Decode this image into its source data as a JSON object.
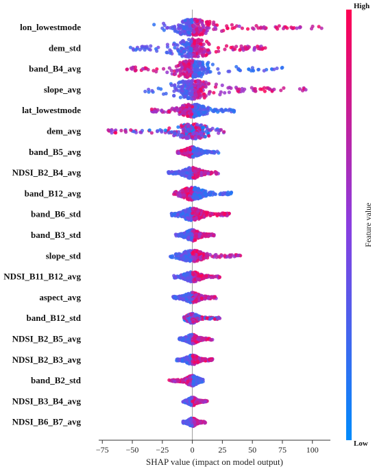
{
  "chart_data": {
    "type": "scatter",
    "subtype": "shap-beeswarm-summary",
    "xlabel": "SHAP value (impact on model output)",
    "xlim": [
      -78,
      115
    ],
    "xticks": [
      -75,
      -50,
      -25,
      0,
      25,
      50,
      75,
      100
    ],
    "grid": false,
    "colorbar": {
      "title": "Feature value",
      "high_label": "High",
      "low_label": "Low",
      "high_color": "#ff0052",
      "low_color": "#008bfb"
    },
    "features": [
      {
        "name": "lon_lowestmode",
        "min": -32,
        "max": 108,
        "spread": 0.85,
        "lowside": "left"
      },
      {
        "name": "dem_std",
        "min": -52,
        "max": 62,
        "spread": 1.0,
        "lowside": "left"
      },
      {
        "name": "band_B4_avg",
        "min": -55,
        "max": 75,
        "spread": 0.9,
        "lowside": "right"
      },
      {
        "name": "slope_avg",
        "min": -40,
        "max": 98,
        "spread": 1.0,
        "lowside": "left"
      },
      {
        "name": "lat_lowestmode",
        "min": -35,
        "max": 37,
        "spread": 0.7,
        "lowside": "right"
      },
      {
        "name": "dem_avg",
        "min": -70,
        "max": 27,
        "spread": 0.8,
        "lowside": "center"
      },
      {
        "name": "band_B5_avg",
        "min": -13,
        "max": 22,
        "spread": 0.55,
        "lowside": "right"
      },
      {
        "name": "NDSI_B2_B4_avg",
        "min": -20,
        "max": 22,
        "spread": 0.6,
        "lowside": "left"
      },
      {
        "name": "band_B12_avg",
        "min": -17,
        "max": 33,
        "spread": 0.7,
        "lowside": "right"
      },
      {
        "name": "band_B6_std",
        "min": -19,
        "max": 31,
        "spread": 0.65,
        "lowside": "left"
      },
      {
        "name": "band_B3_std",
        "min": -14,
        "max": 20,
        "spread": 0.6,
        "lowside": "left"
      },
      {
        "name": "slope_std",
        "min": -19,
        "max": 42,
        "spread": 0.6,
        "lowside": "left"
      },
      {
        "name": "NDSI_B11_B12_avg",
        "min": -16,
        "max": 23,
        "spread": 0.55,
        "lowside": "left"
      },
      {
        "name": "aspect_avg",
        "min": -16,
        "max": 20,
        "spread": 0.55,
        "lowside": "left"
      },
      {
        "name": "band_B12_std",
        "min": -7,
        "max": 24,
        "spread": 0.5,
        "lowside": "center"
      },
      {
        "name": "NDSI_B2_B5_avg",
        "min": -11,
        "max": 17,
        "spread": 0.5,
        "lowside": "left"
      },
      {
        "name": "NDSI_B2_B3_avg",
        "min": -13,
        "max": 17,
        "spread": 0.5,
        "lowside": "left"
      },
      {
        "name": "band_B2_std",
        "min": -20,
        "max": 9,
        "spread": 0.55,
        "lowside": "right"
      },
      {
        "name": "NDSI_B3_B4_avg",
        "min": -8,
        "max": 13,
        "spread": 0.45,
        "lowside": "left"
      },
      {
        "name": "NDSI_B6_B7_avg",
        "min": -8,
        "max": 11,
        "spread": 0.45,
        "lowside": "left"
      }
    ]
  }
}
